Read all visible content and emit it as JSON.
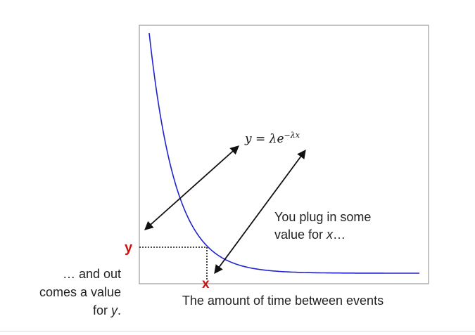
{
  "formula": {
    "y": "y",
    "eq": " = ",
    "lambda": "λ",
    "e": "e",
    "exp": "−λx"
  },
  "axis_label": "The amount of time between events",
  "marker_y": "y",
  "marker_x": "x",
  "note_right": {
    "line1": "You plug in some",
    "line2_prefix": "value for ",
    "line2_var": "x",
    "line2_suffix": "…"
  },
  "note_left": {
    "line1": "… and out",
    "line2": "comes a value",
    "line3_prefix": "for ",
    "line3_var": "y",
    "line3_suffix": "."
  },
  "colors": {
    "curve": "#2222cc",
    "marker": "#cc1111",
    "arrow": "#111111",
    "frame": "#888888",
    "text": "#222222"
  }
}
